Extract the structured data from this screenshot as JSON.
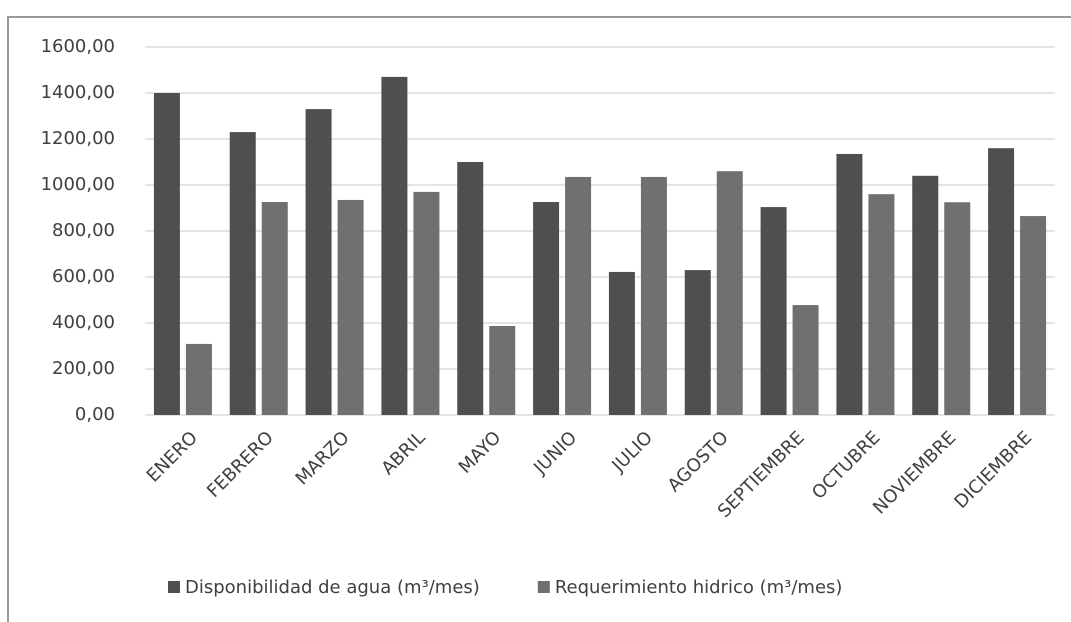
{
  "chart_data": {
    "type": "bar",
    "categories": [
      "ENERO",
      "FEBRERO",
      "MARZO",
      "ABRIL",
      "MAYO",
      "JUNIO",
      "JULIO",
      "AGOSTO",
      "SEPTIEMBRE",
      "OCTUBRE",
      "NOVIEMBRE",
      "DICIEMBRE"
    ],
    "series": [
      {
        "name": "Disponibilidad de agua (m³/mes)",
        "color": "#4f4f4f",
        "values": [
          1400,
          1230,
          1330,
          1470,
          1100,
          926,
          622,
          630,
          904,
          1135,
          1040,
          1160
        ]
      },
      {
        "name": "Requerimiento hidrico (m³/mes)",
        "color": "#707070",
        "values": [
          309,
          926,
          935,
          970,
          387,
          1035,
          1035,
          1060,
          478,
          960,
          925,
          865
        ]
      }
    ],
    "ylim": [
      0,
      1600
    ],
    "yticks": [
      {
        "value": 0,
        "label": "0,00"
      },
      {
        "value": 200,
        "label": "200,00"
      },
      {
        "value": 400,
        "label": "400,00"
      },
      {
        "value": 600,
        "label": "600,00"
      },
      {
        "value": 800,
        "label": "800,00"
      },
      {
        "value": 1000,
        "label": "1000,00"
      },
      {
        "value": 1200,
        "label": "1200,00"
      },
      {
        "value": 1400,
        "label": "1400,00"
      },
      {
        "value": 1600,
        "label": "1600,00"
      }
    ],
    "grid": true,
    "legend": "bottom"
  }
}
